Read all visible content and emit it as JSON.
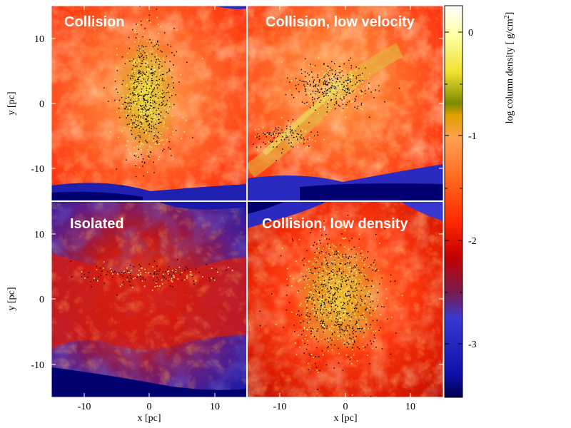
{
  "chart_data": {
    "type": "heatmap",
    "layout": "2x2 panel grid",
    "panels": [
      {
        "title": "Collision",
        "position": "top-left",
        "structure": "dense central stellar cluster"
      },
      {
        "title": "Collision, low velocity",
        "position": "top-right",
        "structure": "filamentary, diagonal cluster"
      },
      {
        "title": "Isolated",
        "position": "bottom-left",
        "structure": "sparse filaments"
      },
      {
        "title": "Collision, low density",
        "position": "bottom-right",
        "structure": "dense central stellar cluster"
      }
    ],
    "xlabel": "x [pc]",
    "ylabel": "y [pc]",
    "xlim": [
      -15,
      15
    ],
    "ylim": [
      -15,
      15
    ],
    "x_ticks": [
      "-10",
      "0",
      "10"
    ],
    "y_ticks": [
      "10",
      "0",
      "-10"
    ],
    "colorbar": {
      "label": "log column density [ g/cm",
      "label_superscript": "2",
      "label_end": "]",
      "range": [
        -3.5,
        0.3
      ],
      "ticks": [
        "0",
        "-1",
        "-2",
        "-3"
      ],
      "colormap": [
        "#000050",
        "#1010a8",
        "#3838d0",
        "#7a1a4a",
        "#c40000",
        "#ff2a00",
        "#ff6a20",
        "#ffa050",
        "#e0a000",
        "#7a8a00",
        "#f0e030",
        "#ffffa0",
        "#ffffff"
      ]
    }
  }
}
